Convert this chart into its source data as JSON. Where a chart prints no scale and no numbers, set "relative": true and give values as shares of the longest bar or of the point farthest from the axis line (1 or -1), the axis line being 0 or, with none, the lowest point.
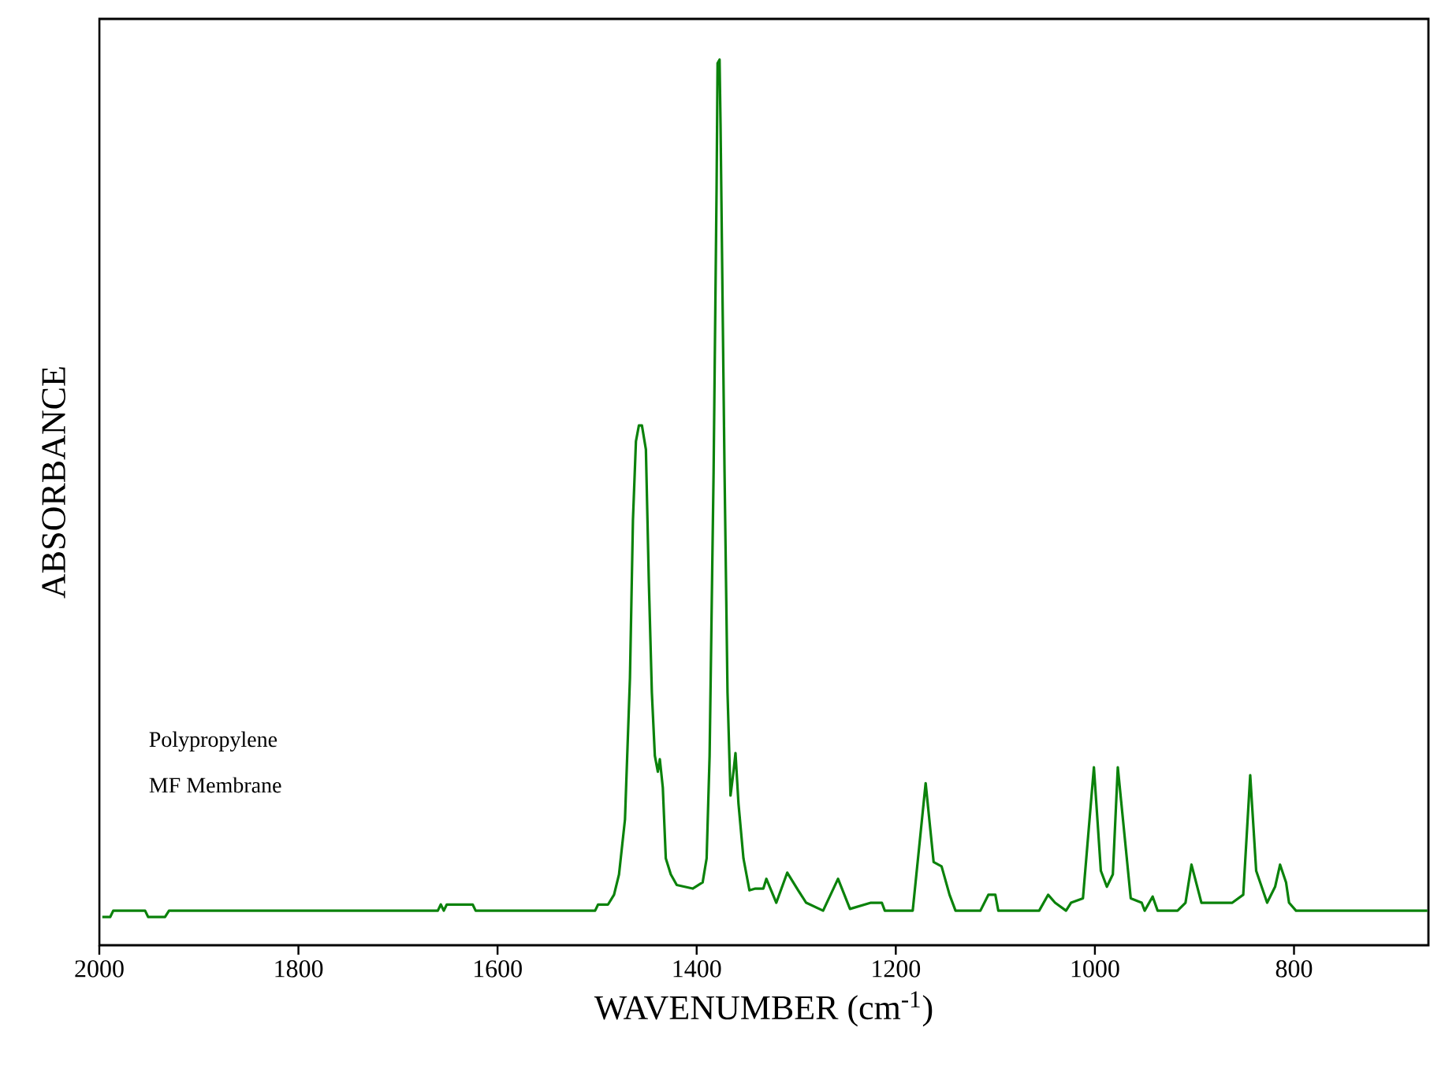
{
  "chart_data": {
    "type": "line",
    "relative": true,
    "xlabel": "WAVENUMBER (cm$^{-1}$)",
    "ylabel": "ABSORBANCE",
    "xlim": [
      2000,
      665
    ],
    "xticks": [
      2000,
      1800,
      1600,
      1400,
      1200,
      1000,
      800
    ],
    "annotations": [
      "Polypropylene",
      "MF Membrane"
    ],
    "grid": false,
    "marker": "none",
    "line_style": "solid",
    "series": [
      {
        "color": "#0b820b",
        "x": [
          1997,
          1989,
          1986,
          1954,
          1951,
          1934,
          1930,
          1660,
          1657,
          1654,
          1651,
          1625,
          1622,
          1502,
          1499,
          1489,
          1483,
          1478,
          1472,
          1467,
          1464,
          1461,
          1458,
          1455,
          1451,
          1448,
          1445,
          1442,
          1439,
          1437,
          1434,
          1431,
          1426,
          1420,
          1404,
          1394,
          1390,
          1387,
          1383,
          1380,
          1379,
          1377,
          1376,
          1372,
          1369,
          1366,
          1363,
          1361,
          1358,
          1353,
          1347,
          1341,
          1333,
          1330,
          1320,
          1309,
          1298,
          1290,
          1273,
          1258,
          1246,
          1225,
          1214,
          1211,
          1183,
          1170,
          1162,
          1154,
          1146,
          1140,
          1115,
          1107,
          1100,
          1097,
          1056,
          1047,
          1040,
          1029,
          1024,
          1012,
          1001,
          994,
          988,
          982,
          977,
          964,
          953,
          950,
          942,
          937,
          917,
          909,
          903,
          893,
          862,
          851,
          844,
          838,
          827,
          819,
          814,
          808,
          805,
          798,
          666
        ],
        "values": [
          0.032,
          0.032,
          0.039,
          0.039,
          0.032,
          0.032,
          0.039,
          0.039,
          0.046,
          0.039,
          0.046,
          0.046,
          0.039,
          0.039,
          0.046,
          0.046,
          0.057,
          0.08,
          0.142,
          0.302,
          0.48,
          0.569,
          0.587,
          0.587,
          0.56,
          0.409,
          0.285,
          0.214,
          0.196,
          0.21,
          0.178,
          0.098,
          0.08,
          0.068,
          0.064,
          0.071,
          0.098,
          0.214,
          0.534,
          0.854,
          0.996,
          1,
          0.925,
          0.534,
          0.285,
          0.169,
          0.196,
          0.217,
          0.16,
          0.098,
          0.062,
          0.064,
          0.064,
          0.075,
          0.048,
          0.082,
          0.062,
          0.048,
          0.039,
          0.075,
          0.041,
          0.048,
          0.048,
          0.039,
          0.039,
          0.183,
          0.094,
          0.089,
          0.057,
          0.039,
          0.039,
          0.057,
          0.057,
          0.039,
          0.039,
          0.057,
          0.048,
          0.039,
          0.048,
          0.053,
          0.201,
          0.084,
          0.066,
          0.08,
          0.201,
          0.053,
          0.048,
          0.039,
          0.055,
          0.039,
          0.039,
          0.048,
          0.091,
          0.048,
          0.048,
          0.057,
          0.192,
          0.084,
          0.048,
          0.066,
          0.091,
          0.071,
          0.048,
          0.039,
          0.039
        ]
      }
    ]
  }
}
